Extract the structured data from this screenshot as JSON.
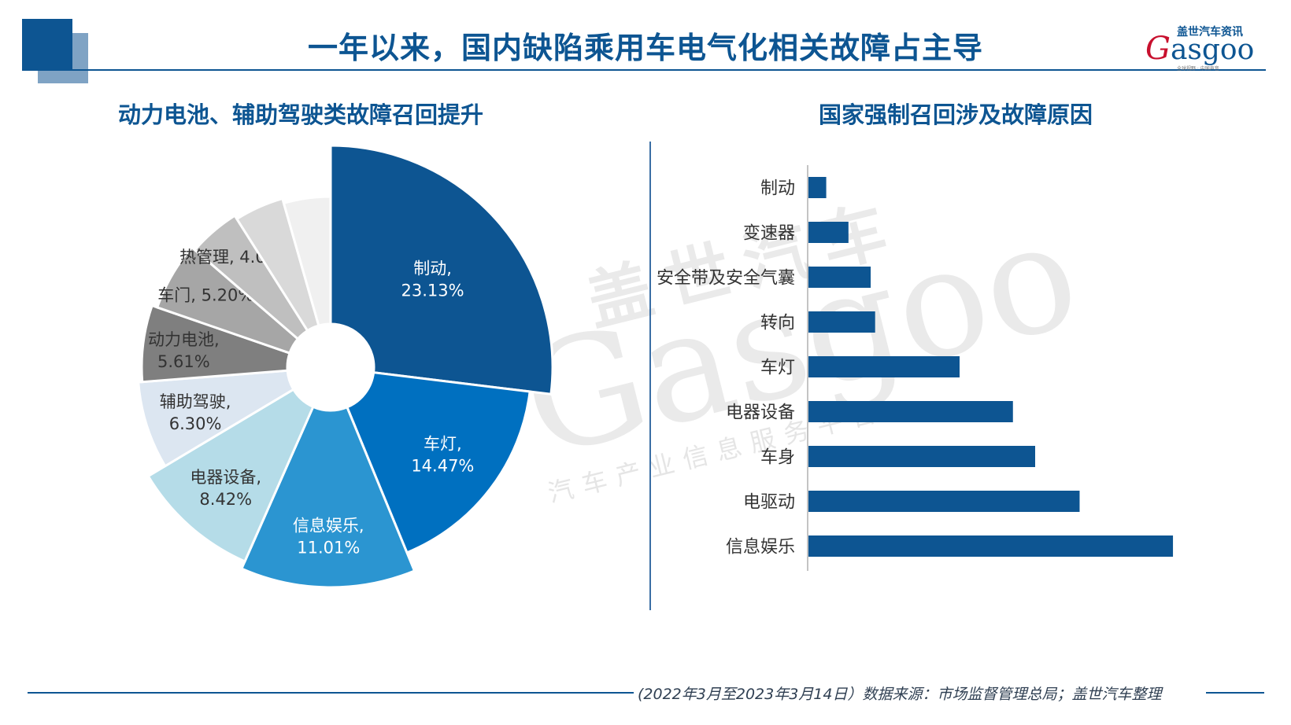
{
  "header": {
    "title": "一年以来，国内缺陷乘用车电气化相关故障占主导",
    "logo_cn": "盖世汽车资讯",
    "logo_en_initial": "G",
    "logo_en_rest": "asgoo",
    "logo_tagline": "全球视野 · 中国声音"
  },
  "watermark": {
    "cn": "盖世汽车",
    "en": "Gasgoo",
    "sub": "汽车产业信息服务平台"
  },
  "colors": {
    "brand": "#0d5592",
    "bar": "#0d5592",
    "pie": [
      "#0d5592",
      "#0070c0",
      "#2b95d1",
      "#b5dce8",
      "#dce6f1",
      "#7f7f7f",
      "#a6a6a6",
      "#bfbfbf",
      "#d9d9d9",
      "#f0f0f0"
    ]
  },
  "footer": {
    "source": "(2022年3月至2023年3月14日）数据来源：市场监督管理总局；盖世汽车整理"
  },
  "chart_data": [
    {
      "type": "pie",
      "title": "动力电池、辅助驾驶类故障召回提升",
      "slices": [
        {
          "label": "制动",
          "value": 23.13,
          "text": "23.13%"
        },
        {
          "label": "车灯",
          "value": 14.47,
          "text": "14.47%"
        },
        {
          "label": "信息娱乐",
          "value": 11.01,
          "text": "11.01%"
        },
        {
          "label": "电器设备",
          "value": 8.42,
          "text": "8.42%"
        },
        {
          "label": "辅助驾驶",
          "value": 6.3,
          "text": "6.30%"
        },
        {
          "label": "动力电池",
          "value": 5.61,
          "text": "5.61%"
        },
        {
          "label": "车门",
          "value": 5.2,
          "text": "5.20%"
        },
        {
          "label": "热管理",
          "value": 4.02,
          "text": "4.02%"
        },
        {
          "label": "",
          "value": 3.9,
          "text": ""
        },
        {
          "label": "",
          "value": 3.8,
          "text": ""
        }
      ]
    },
    {
      "type": "bar",
      "orientation": "horizontal",
      "title": "国家强制召回涉及故障原因",
      "categories": [
        "制动",
        "变速器",
        "安全带及安全气囊",
        "转向",
        "车灯",
        "电器设备",
        "车身",
        "电驱动",
        "信息娱乐"
      ],
      "values": [
        4,
        9,
        14,
        15,
        34,
        46,
        51,
        61,
        82
      ],
      "xlim": [
        0,
        85
      ],
      "grid": false
    }
  ]
}
